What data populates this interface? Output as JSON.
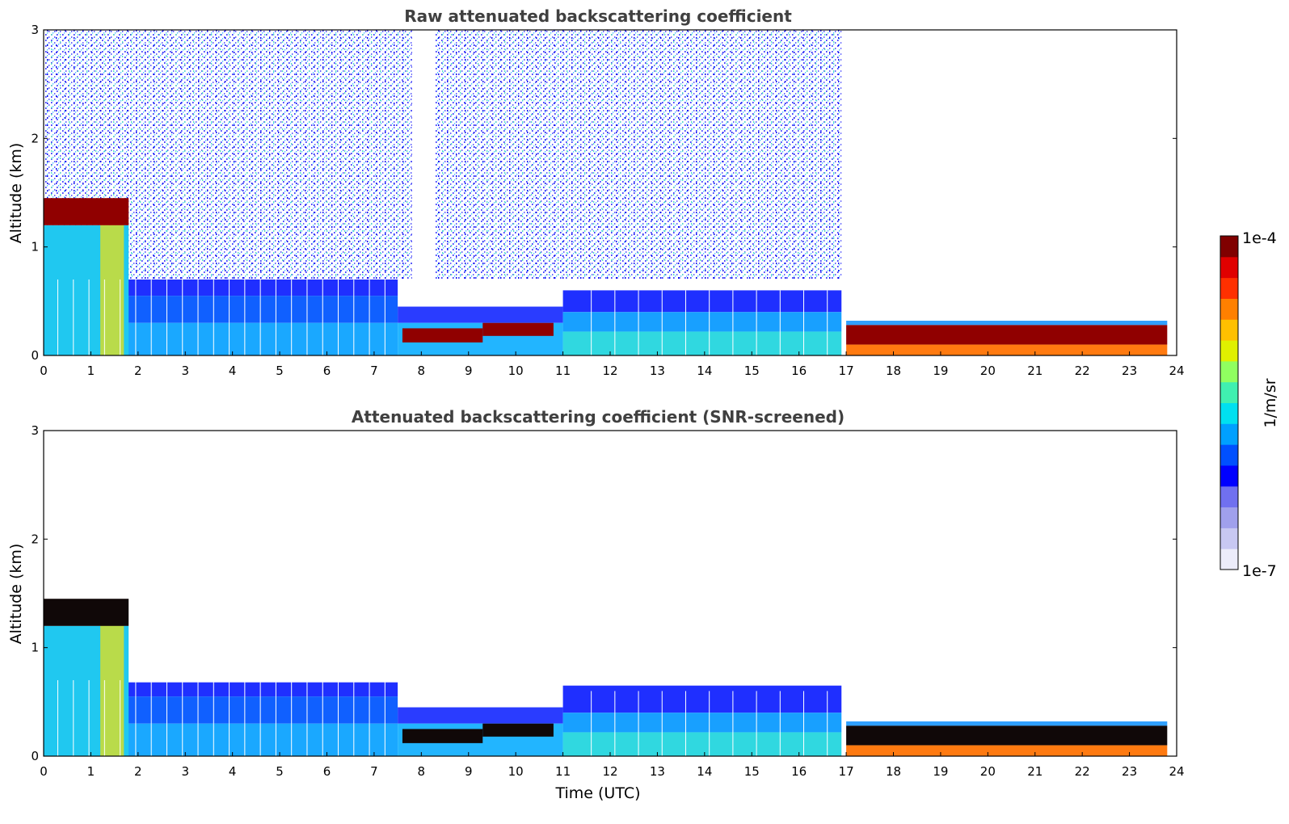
{
  "chart_data": [
    {
      "type": "heatmap",
      "title": "Raw attenuated backscattering coefficient",
      "xlabel": "",
      "ylabel": "Altitude (km)",
      "xlim": [
        0,
        24
      ],
      "ylim": [
        0,
        3
      ],
      "x_ticks": [
        "0",
        "1",
        "2",
        "3",
        "4",
        "5",
        "6",
        "7",
        "8",
        "9",
        "10",
        "11",
        "12",
        "13",
        "14",
        "15",
        "16",
        "17",
        "18",
        "19",
        "20",
        "21",
        "22",
        "23",
        "24"
      ],
      "y_ticks": [
        "0",
        "1",
        "2",
        "3"
      ],
      "features": [
        {
          "name": "boundary-layer aerosol",
          "time": [
            0,
            16.9
          ],
          "altitude_km": [
            0,
            0.7
          ],
          "level": "low-mid"
        },
        {
          "name": "cloud layer",
          "time": [
            0,
            1.8
          ],
          "altitude_km": [
            1.2,
            1.45
          ],
          "level": "high"
        },
        {
          "name": "cloud layer",
          "time": [
            7.6,
            9.3
          ],
          "altitude_km": [
            0.12,
            0.25
          ],
          "level": "high"
        },
        {
          "name": "cloud layer",
          "time": [
            9.3,
            10.7
          ],
          "altitude_km": [
            0.18,
            0.3
          ],
          "level": "high"
        },
        {
          "name": "low cloud / fog",
          "time": [
            17,
            23.8
          ],
          "altitude_km": [
            0.05,
            0.3
          ],
          "level": "high"
        },
        {
          "name": "noise (above layer)",
          "time": [
            0,
            16.9
          ],
          "altitude_km": [
            0.7,
            3.0
          ],
          "level": "noise"
        }
      ]
    },
    {
      "type": "heatmap",
      "title": "Attenuated backscattering coefficient (SNR-screened)",
      "xlabel": "Time (UTC)",
      "ylabel": "Altitude (km)",
      "xlim": [
        0,
        24
      ],
      "ylim": [
        0,
        3
      ],
      "x_ticks": [
        "0",
        "1",
        "2",
        "3",
        "4",
        "5",
        "6",
        "7",
        "8",
        "9",
        "10",
        "11",
        "12",
        "13",
        "14",
        "15",
        "16",
        "17",
        "18",
        "19",
        "20",
        "21",
        "22",
        "23",
        "24"
      ],
      "y_ticks": [
        "0",
        "1",
        "2",
        "3"
      ],
      "features": [
        {
          "name": "boundary-layer aerosol",
          "time": [
            0,
            16.9
          ],
          "altitude_km": [
            0,
            0.68
          ],
          "level": "low-mid"
        },
        {
          "name": "cloud layer",
          "time": [
            0,
            1.8
          ],
          "altitude_km": [
            1.2,
            1.45
          ],
          "level": "saturated"
        },
        {
          "name": "cloud layer",
          "time": [
            7.6,
            10.8
          ],
          "altitude_km": [
            0.12,
            0.3
          ],
          "level": "saturated"
        },
        {
          "name": "low cloud / fog",
          "time": [
            17,
            23.8
          ],
          "altitude_km": [
            0.05,
            0.3
          ],
          "level": "saturated"
        }
      ]
    }
  ],
  "colorbar": {
    "label": "1/m/sr",
    "max_label": "1e-4",
    "min_label": "1e-7",
    "scale": "log",
    "colors": [
      "#ececfa",
      "#c8c8f2",
      "#a0a0ec",
      "#7070f0",
      "#0000ff",
      "#0050ff",
      "#00a0ff",
      "#00e0f0",
      "#40f0b0",
      "#90ff60",
      "#e0f000",
      "#ffc000",
      "#ff8000",
      "#ff3000",
      "#e00000",
      "#800000"
    ]
  }
}
